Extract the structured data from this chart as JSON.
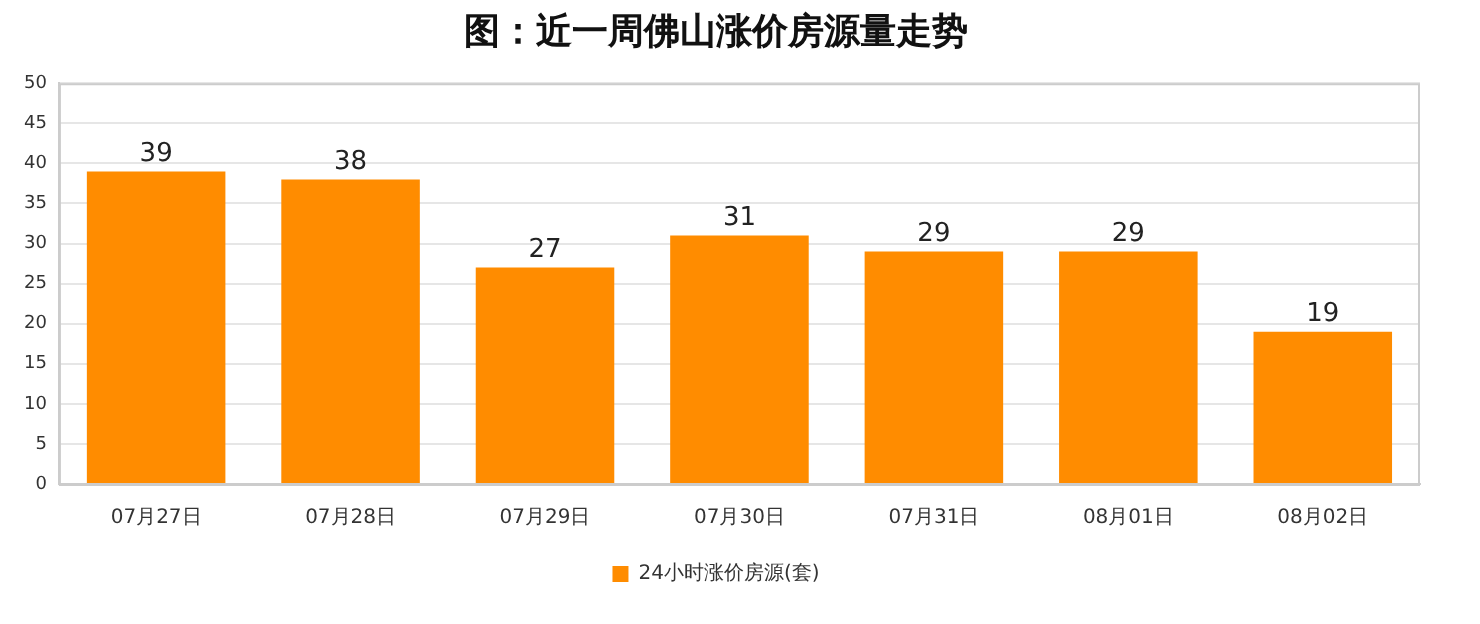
{
  "chart_data": {
    "type": "bar",
    "title": "图：近一周佛山涨价房源量走势",
    "categories": [
      "07月27日",
      "07月28日",
      "07月29日",
      "07月30日",
      "07月31日",
      "08月01日",
      "08月02日"
    ],
    "series": [
      {
        "name": "24小时涨价房源(套)",
        "color": "#ff8c00",
        "values": [
          39,
          38,
          27,
          31,
          29,
          29,
          19
        ]
      }
    ],
    "ylim": [
      0,
      50
    ],
    "yticks": [
      0,
      5,
      10,
      15,
      20,
      25,
      30,
      35,
      40,
      45,
      50
    ],
    "grid": "y",
    "legend": "bottom",
    "data_labels": true
  }
}
